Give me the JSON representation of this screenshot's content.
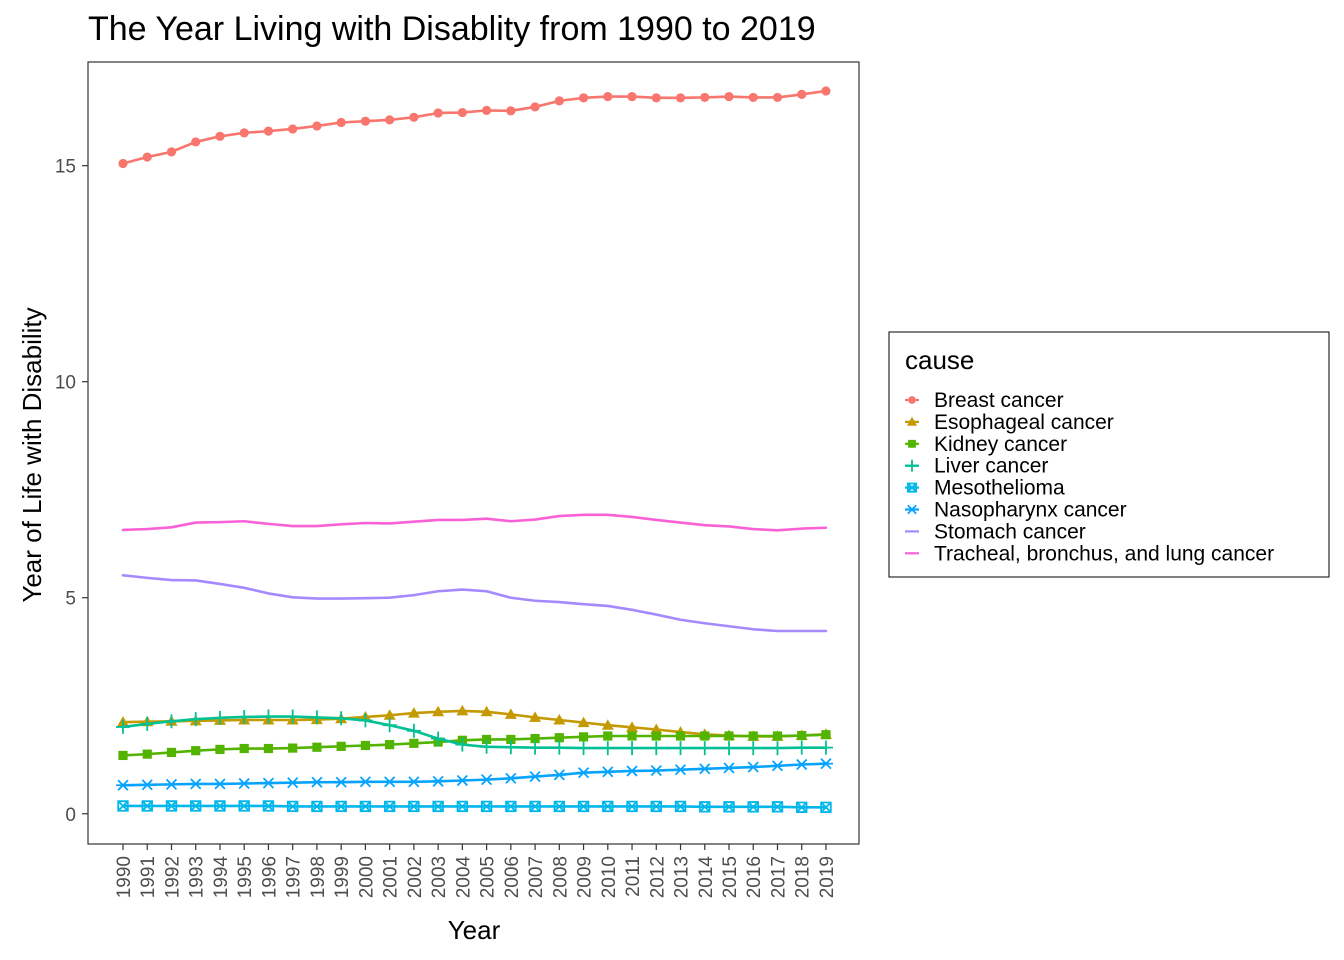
{
  "chart_data": {
    "type": "line",
    "title": "The Year Living with Disablity from 1990 to 2019",
    "xlabel": "Year",
    "ylabel": "Year of Life with Disability",
    "ylim": [
      -0.7,
      17.4
    ],
    "yticks": [
      "0",
      "5",
      "10",
      "15"
    ],
    "grid": false,
    "legend": {
      "title": "cause",
      "position": "right"
    },
    "x": [
      "1990",
      "1991",
      "1992",
      "1993",
      "1994",
      "1995",
      "1996",
      "1997",
      "1998",
      "1999",
      "2000",
      "2001",
      "2002",
      "2003",
      "2004",
      "2005",
      "2006",
      "2007",
      "2008",
      "2009",
      "2010",
      "2011",
      "2012",
      "2013",
      "2014",
      "2015",
      "2016",
      "2017",
      "2018",
      "2019"
    ],
    "series": [
      {
        "name": "Breast cancer",
        "color": "#F8766D",
        "marker": "circle",
        "values": [
          15.05,
          15.2,
          15.32,
          15.55,
          15.68,
          15.76,
          15.8,
          15.85,
          15.92,
          16.0,
          16.03,
          16.06,
          16.12,
          16.22,
          16.23,
          16.28,
          16.27,
          16.36,
          16.5,
          16.57,
          16.6,
          16.6,
          16.57,
          16.57,
          16.58,
          16.6,
          16.58,
          16.58,
          16.65,
          16.73
        ]
      },
      {
        "name": "Esophageal cancer",
        "color": "#C49A00",
        "marker": "triangle",
        "values": [
          2.12,
          2.13,
          2.14,
          2.15,
          2.16,
          2.17,
          2.17,
          2.17,
          2.18,
          2.2,
          2.24,
          2.28,
          2.33,
          2.36,
          2.38,
          2.36,
          2.3,
          2.23,
          2.17,
          2.11,
          2.05,
          2.0,
          1.95,
          1.89,
          1.84,
          1.81,
          1.79,
          1.79,
          1.81,
          1.84
        ]
      },
      {
        "name": "Kidney cancer",
        "color": "#53B400",
        "marker": "square",
        "values": [
          1.35,
          1.38,
          1.42,
          1.46,
          1.49,
          1.51,
          1.51,
          1.52,
          1.54,
          1.56,
          1.58,
          1.6,
          1.63,
          1.66,
          1.7,
          1.72,
          1.72,
          1.74,
          1.76,
          1.78,
          1.8,
          1.8,
          1.8,
          1.8,
          1.8,
          1.8,
          1.8,
          1.8,
          1.81,
          1.83
        ]
      },
      {
        "name": "Liver cancer",
        "color": "#00C094",
        "marker": "plus",
        "values": [
          2.01,
          2.08,
          2.14,
          2.19,
          2.22,
          2.24,
          2.25,
          2.25,
          2.23,
          2.21,
          2.16,
          2.05,
          1.92,
          1.74,
          1.6,
          1.55,
          1.54,
          1.53,
          1.53,
          1.52,
          1.52,
          1.52,
          1.52,
          1.52,
          1.52,
          1.52,
          1.52,
          1.52,
          1.53,
          1.53
        ]
      },
      {
        "name": "Mesothelioma",
        "color": "#00B6EB",
        "marker": "square-x",
        "values": [
          0.18,
          0.18,
          0.18,
          0.18,
          0.18,
          0.18,
          0.18,
          0.17,
          0.17,
          0.17,
          0.17,
          0.17,
          0.17,
          0.17,
          0.17,
          0.17,
          0.17,
          0.17,
          0.17,
          0.17,
          0.17,
          0.17,
          0.17,
          0.17,
          0.16,
          0.16,
          0.16,
          0.16,
          0.15,
          0.15
        ]
      },
      {
        "name": "Nasopharynx cancer",
        "color": "#06A4FF",
        "marker": "asterisk",
        "values": [
          0.66,
          0.67,
          0.68,
          0.69,
          0.69,
          0.7,
          0.71,
          0.72,
          0.73,
          0.73,
          0.74,
          0.74,
          0.74,
          0.75,
          0.77,
          0.79,
          0.82,
          0.86,
          0.9,
          0.95,
          0.97,
          0.99,
          1.0,
          1.02,
          1.04,
          1.06,
          1.08,
          1.11,
          1.14,
          1.16
        ]
      },
      {
        "name": "Stomach cancer",
        "color": "#A58AFF",
        "marker": "none",
        "values": [
          5.52,
          5.46,
          5.41,
          5.4,
          5.32,
          5.23,
          5.1,
          5.01,
          4.98,
          4.98,
          4.99,
          5.0,
          5.06,
          5.15,
          5.19,
          5.15,
          5.0,
          4.93,
          4.9,
          4.85,
          4.81,
          4.72,
          4.61,
          4.49,
          4.41,
          4.34,
          4.27,
          4.23,
          4.23,
          4.23
        ]
      },
      {
        "name": "Tracheal, bronchus, and lung cancer",
        "color": "#FB61D7",
        "marker": "none",
        "values": [
          6.57,
          6.59,
          6.63,
          6.74,
          6.75,
          6.77,
          6.71,
          6.66,
          6.66,
          6.7,
          6.73,
          6.72,
          6.76,
          6.8,
          6.8,
          6.83,
          6.77,
          6.81,
          6.89,
          6.92,
          6.92,
          6.87,
          6.8,
          6.74,
          6.68,
          6.65,
          6.59,
          6.56,
          6.6,
          6.62
        ]
      }
    ]
  }
}
